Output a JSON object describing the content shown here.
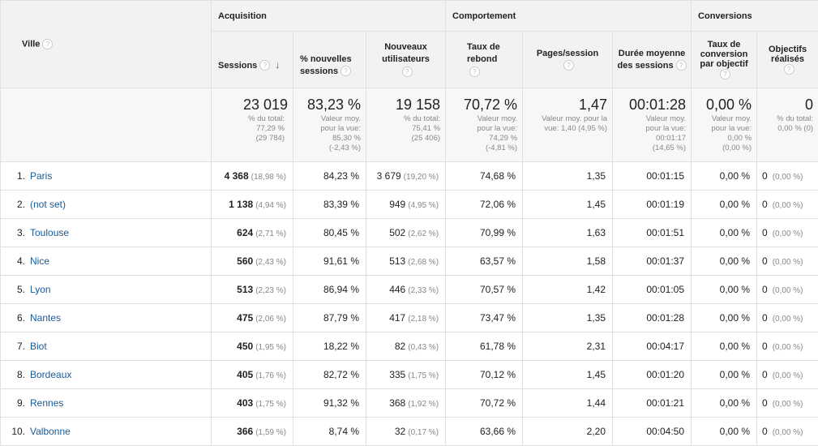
{
  "groups": {
    "acquisition": "Acquisition",
    "comportement": "Comportement",
    "conversions": "Conversions"
  },
  "columns": {
    "ville": "Ville",
    "sessions": "Sessions",
    "nouvelles_sessions": "% nouvelles sessions",
    "nouveaux_utilisateurs": "Nouveaux utilisateurs",
    "taux_rebond": "Taux de rebond",
    "pages_session": "Pages/session",
    "duree": "Durée moyenne des sessions",
    "taux_conversion": "Taux de conversion par objectif",
    "objectifs": "Objectifs réalisés"
  },
  "totals": {
    "sessions": {
      "value": "23 019",
      "l1": "% du total:",
      "l2": "77,29 %",
      "l3": "(29 784)"
    },
    "nouvelles_sessions": {
      "value": "83,23 %",
      "l1": "Valeur moy.",
      "l2": "pour la vue:",
      "l3": "85,30 %",
      "l4": "(-2,43 %)"
    },
    "nouveaux_utilisateurs": {
      "value": "19 158",
      "l1": "% du total:",
      "l2": "75,41 %",
      "l3": "(25 406)"
    },
    "taux_rebond": {
      "value": "70,72 %",
      "l1": "Valeur moy.",
      "l2": "pour la vue:",
      "l3": "74,29 %",
      "l4": "(-4,81 %)"
    },
    "pages_session": {
      "value": "1,47",
      "l1": "Valeur moy. pour la",
      "l2": "vue: 1,40 (4,95 %)"
    },
    "duree": {
      "value": "00:01:28",
      "l1": "Valeur moy.",
      "l2": "pour la vue:",
      "l3": "00:01:17",
      "l4": "(14,65 %)"
    },
    "taux_conversion": {
      "value": "0,00 %",
      "l1": "Valeur moy.",
      "l2": "pour la vue:",
      "l3": "0,00 %",
      "l4": "(0,00 %)"
    },
    "objectifs": {
      "value": "0",
      "l1": "% du total:",
      "l2": "0,00 % (0)"
    }
  },
  "rows": [
    {
      "n": "1.",
      "city": "Paris",
      "sessions": "4 368",
      "sessions_pct": "(18,98 %)",
      "new_sessions": "84,23 %",
      "new_users": "3 679",
      "new_users_pct": "(19,20 %)",
      "bounce": "74,68 %",
      "pages": "1,35",
      "duration": "00:01:15",
      "conv": "0,00 %",
      "goals": "0",
      "goals_pct": "(0,00 %)"
    },
    {
      "n": "2.",
      "city": "(not set)",
      "sessions": "1 138",
      "sessions_pct": "(4,94 %)",
      "new_sessions": "83,39 %",
      "new_users": "949",
      "new_users_pct": "(4,95 %)",
      "bounce": "72,06 %",
      "pages": "1,45",
      "duration": "00:01:19",
      "conv": "0,00 %",
      "goals": "0",
      "goals_pct": "(0,00 %)"
    },
    {
      "n": "3.",
      "city": "Toulouse",
      "sessions": "624",
      "sessions_pct": "(2,71 %)",
      "new_sessions": "80,45 %",
      "new_users": "502",
      "new_users_pct": "(2,62 %)",
      "bounce": "70,99 %",
      "pages": "1,63",
      "duration": "00:01:51",
      "conv": "0,00 %",
      "goals": "0",
      "goals_pct": "(0,00 %)"
    },
    {
      "n": "4.",
      "city": "Nice",
      "sessions": "560",
      "sessions_pct": "(2,43 %)",
      "new_sessions": "91,61 %",
      "new_users": "513",
      "new_users_pct": "(2,68 %)",
      "bounce": "63,57 %",
      "pages": "1,58",
      "duration": "00:01:37",
      "conv": "0,00 %",
      "goals": "0",
      "goals_pct": "(0,00 %)"
    },
    {
      "n": "5.",
      "city": "Lyon",
      "sessions": "513",
      "sessions_pct": "(2,23 %)",
      "new_sessions": "86,94 %",
      "new_users": "446",
      "new_users_pct": "(2,33 %)",
      "bounce": "70,57 %",
      "pages": "1,42",
      "duration": "00:01:05",
      "conv": "0,00 %",
      "goals": "0",
      "goals_pct": "(0,00 %)"
    },
    {
      "n": "6.",
      "city": "Nantes",
      "sessions": "475",
      "sessions_pct": "(2,06 %)",
      "new_sessions": "87,79 %",
      "new_users": "417",
      "new_users_pct": "(2,18 %)",
      "bounce": "73,47 %",
      "pages": "1,35",
      "duration": "00:01:28",
      "conv": "0,00 %",
      "goals": "0",
      "goals_pct": "(0,00 %)"
    },
    {
      "n": "7.",
      "city": "Biot",
      "sessions": "450",
      "sessions_pct": "(1,95 %)",
      "new_sessions": "18,22 %",
      "new_users": "82",
      "new_users_pct": "(0,43 %)",
      "bounce": "61,78 %",
      "pages": "2,31",
      "duration": "00:04:17",
      "conv": "0,00 %",
      "goals": "0",
      "goals_pct": "(0,00 %)"
    },
    {
      "n": "8.",
      "city": "Bordeaux",
      "sessions": "405",
      "sessions_pct": "(1,76 %)",
      "new_sessions": "82,72 %",
      "new_users": "335",
      "new_users_pct": "(1,75 %)",
      "bounce": "70,12 %",
      "pages": "1,45",
      "duration": "00:01:20",
      "conv": "0,00 %",
      "goals": "0",
      "goals_pct": "(0,00 %)"
    },
    {
      "n": "9.",
      "city": "Rennes",
      "sessions": "403",
      "sessions_pct": "(1,75 %)",
      "new_sessions": "91,32 %",
      "new_users": "368",
      "new_users_pct": "(1,92 %)",
      "bounce": "70,72 %",
      "pages": "1,44",
      "duration": "00:01:21",
      "conv": "0,00 %",
      "goals": "0",
      "goals_pct": "(0,00 %)"
    },
    {
      "n": "10.",
      "city": "Valbonne",
      "sessions": "366",
      "sessions_pct": "(1,59 %)",
      "new_sessions": "8,74 %",
      "new_users": "32",
      "new_users_pct": "(0,17 %)",
      "bounce": "63,66 %",
      "pages": "2,20",
      "duration": "00:04:50",
      "conv": "0,00 %",
      "goals": "0",
      "goals_pct": "(0,00 %)"
    }
  ]
}
